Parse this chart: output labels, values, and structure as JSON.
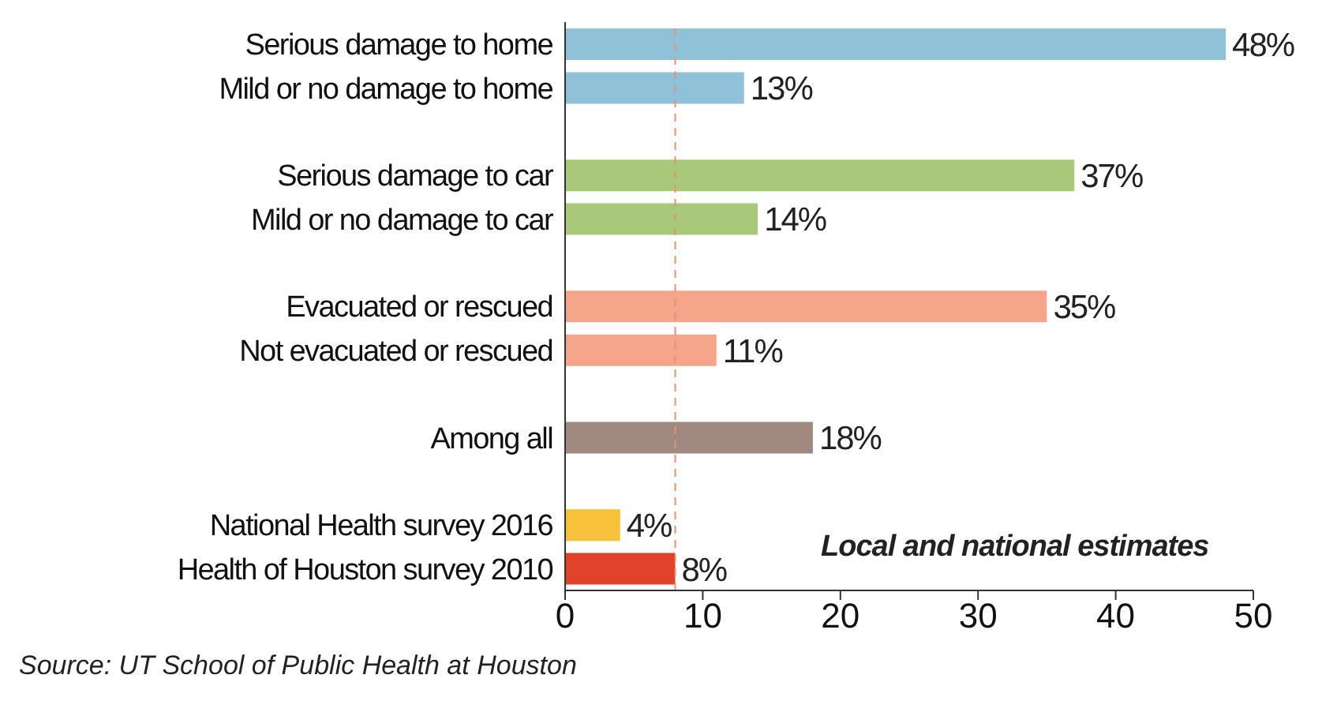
{
  "chart_data": {
    "type": "bar",
    "orientation": "horizontal",
    "categories": [
      "Serious damage to home",
      "Mild or no damage to home",
      null,
      "Serious damage to car",
      "Mild or no damage to car",
      null,
      "Evacuated or rescued",
      "Not evacuated or rescued",
      null,
      "Among all",
      null,
      "National Health survey 2016",
      "Health of Houston survey 2010"
    ],
    "values": [
      48,
      13,
      null,
      37,
      14,
      null,
      35,
      11,
      null,
      18,
      null,
      4,
      8
    ],
    "value_labels": [
      "48%",
      "13%",
      null,
      "37%",
      "14%",
      null,
      "35%",
      "11%",
      null,
      "18%",
      null,
      "4%",
      "8%"
    ],
    "colors": [
      "#8fc1d9",
      "#8fc1d9",
      null,
      "#a8c97a",
      "#a8c97a",
      null,
      "#f4a58a",
      "#f4a58a",
      null,
      "#a08a80",
      null,
      "#f7c23a",
      "#e0422a"
    ],
    "xlim": [
      0,
      50
    ],
    "xticks": [
      0,
      10,
      20,
      30,
      40,
      50
    ],
    "grid": false,
    "ref_lines": [
      {
        "axis": "x",
        "value": 8,
        "color": "#e8907a",
        "line_style": "dashed"
      }
    ],
    "annotations": [
      "Local and national estimates",
      "Source: UT School of Public Health at Houston"
    ]
  }
}
